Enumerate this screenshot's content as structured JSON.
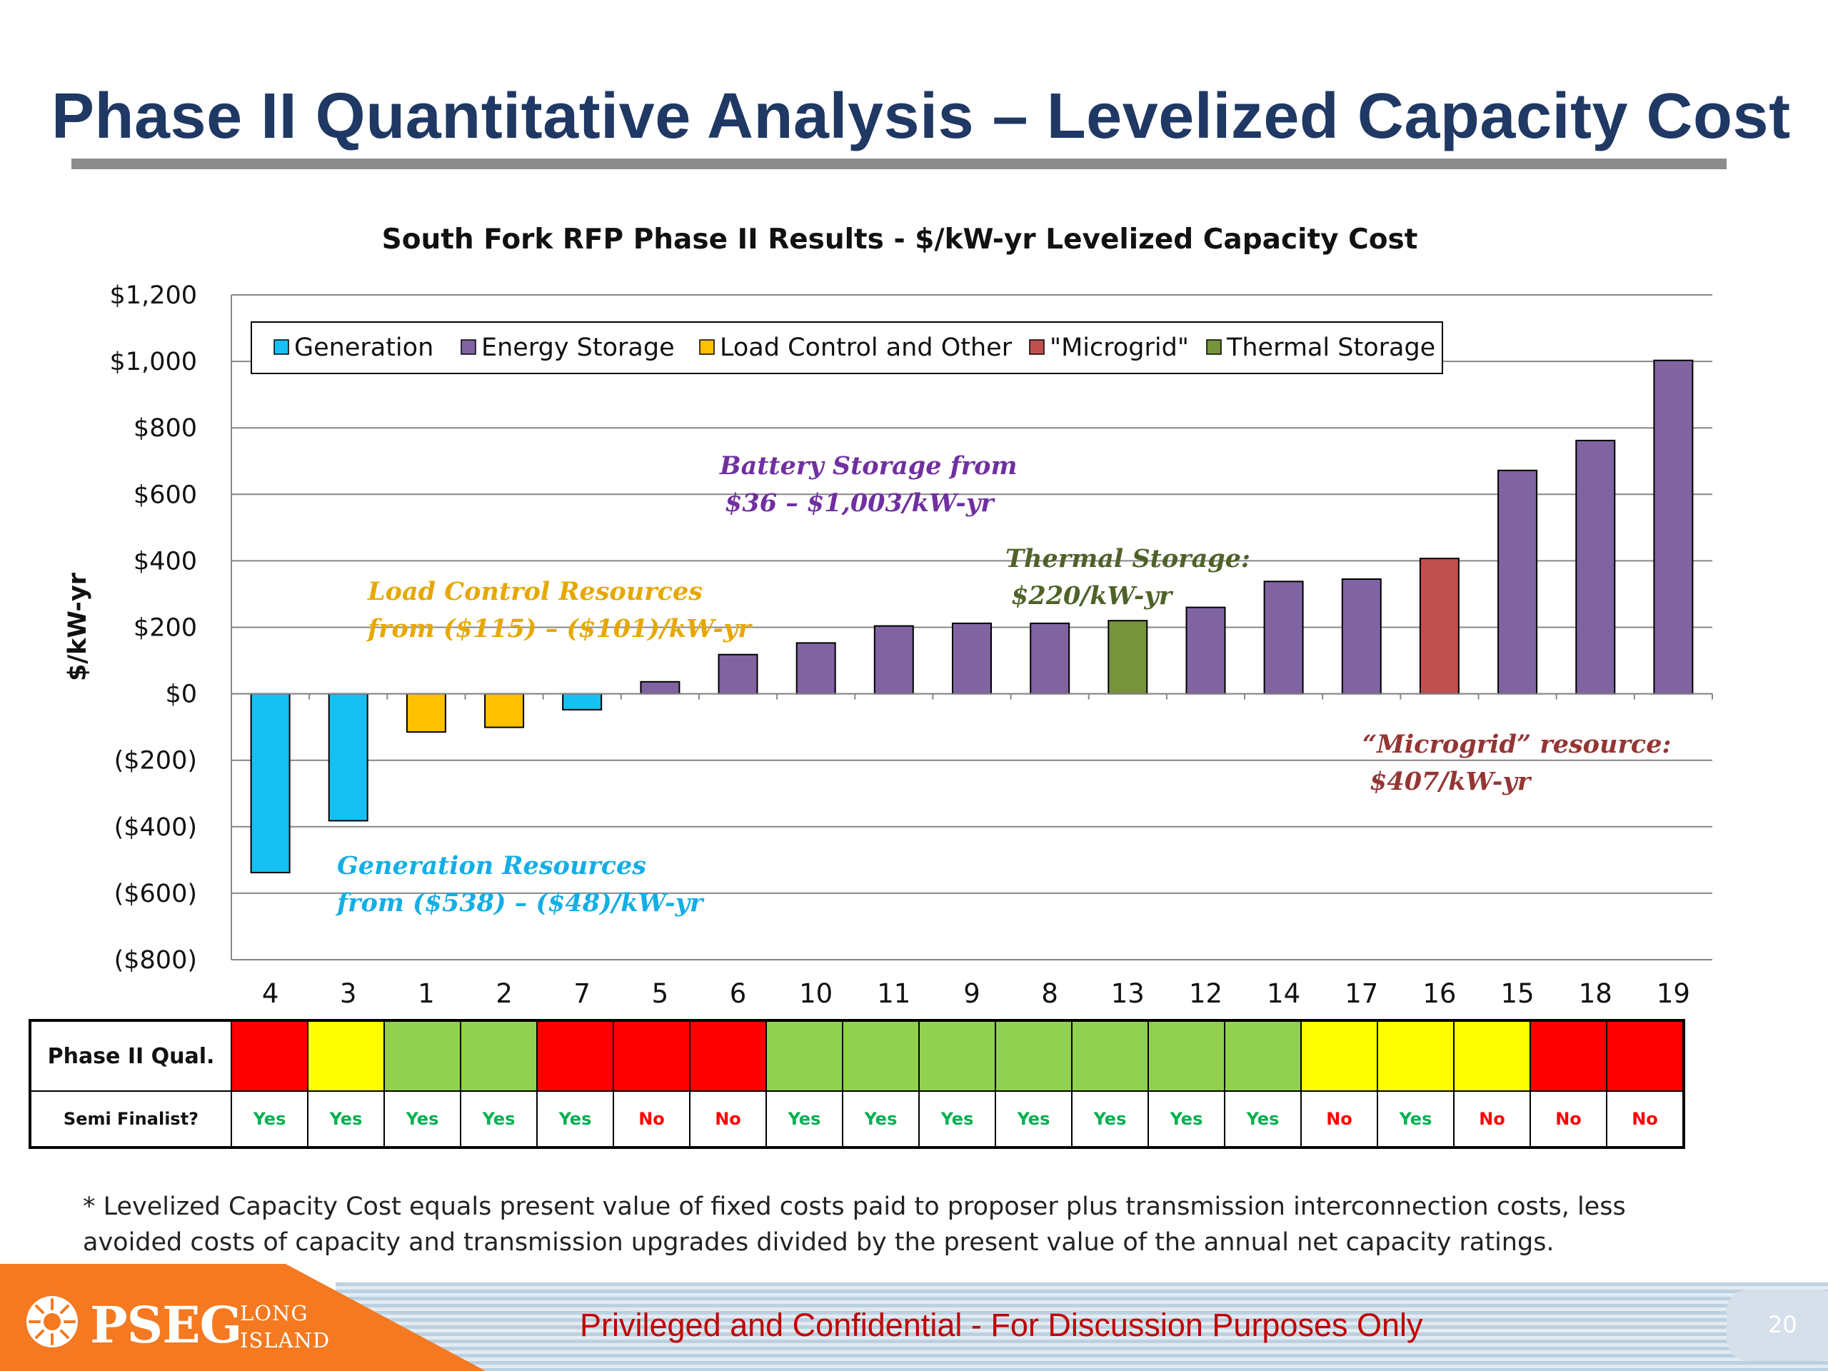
{
  "slide": {
    "title": "Phase II Quantitative Analysis – Levelized Capacity Cost",
    "footnote": "* Levelized Capacity Cost equals present value of fixed costs paid to proposer plus transmission interconnection costs, less avoided costs of capacity and transmission upgrades divided by the present value of the annual net capacity ratings.",
    "confidential": "Privileged and Confidential - For Discussion Purposes Only",
    "page_number": "20",
    "logo": {
      "brand": "PSEG",
      "line1": "LONG",
      "line2": "ISLAND"
    }
  },
  "chart_data": {
    "type": "bar",
    "title": "South Fork RFP Phase II Results - $/kW-yr Levelized Capacity Cost",
    "xlabel": "",
    "ylabel": "$/kW-yr",
    "ylim": [
      -800,
      1200
    ],
    "y_ticks": [
      {
        "value": 1200,
        "label": "$1,200"
      },
      {
        "value": 1000,
        "label": "$1,000"
      },
      {
        "value": 800,
        "label": "$800"
      },
      {
        "value": 600,
        "label": "$600"
      },
      {
        "value": 400,
        "label": "$400"
      },
      {
        "value": 200,
        "label": "$200"
      },
      {
        "value": 0,
        "label": "$0"
      },
      {
        "value": -200,
        "label": "($200)"
      },
      {
        "value": -400,
        "label": "($400)"
      },
      {
        "value": -600,
        "label": "($600)"
      },
      {
        "value": -800,
        "label": "($800)"
      }
    ],
    "grid": true,
    "legend_position": "top-left",
    "categories": [
      "4",
      "3",
      "1",
      "2",
      "7",
      "5",
      "6",
      "10",
      "11",
      "9",
      "8",
      "13",
      "12",
      "14",
      "17",
      "16",
      "15",
      "18",
      "19"
    ],
    "values": [
      -538,
      -382,
      -115,
      -101,
      -48,
      36,
      118,
      153,
      204,
      212,
      212,
      220,
      260,
      338,
      345,
      407,
      672,
      762,
      1003
    ],
    "bar_types": [
      "Generation",
      "Generation",
      "Load Control and Other",
      "Load Control and Other",
      "Generation",
      "Energy Storage",
      "Energy Storage",
      "Energy Storage",
      "Energy Storage",
      "Energy Storage",
      "Energy Storage",
      "Thermal Storage",
      "Energy Storage",
      "Energy Storage",
      "Energy Storage",
      "\"Microgrid\"",
      "Energy Storage",
      "Energy Storage",
      "Energy Storage"
    ],
    "legend": [
      {
        "name": "Generation",
        "color": "#14c1f2"
      },
      {
        "name": "Energy Storage",
        "color": "#8064a2"
      },
      {
        "name": "Load Control and Other",
        "color": "#ffc000"
      },
      {
        "name": "\"Microgrid\"",
        "color": "#c0504d"
      },
      {
        "name": "Thermal Storage",
        "color": "#77933c"
      }
    ],
    "annotations": {
      "battery": {
        "line1": "Battery Storage from",
        "line2": "$36 – $1,003/kW-yr",
        "color": "#7030a0"
      },
      "thermal": {
        "line1": "Thermal Storage:",
        "line2": "$220/kW-yr",
        "color": "#4f6228"
      },
      "load_control": {
        "line1": "Load Control Resources",
        "line2": "from ($115) – ($101)/kW-yr",
        "color": "#e6a800"
      },
      "generation": {
        "line1": "Generation Resources",
        "line2": "from ($538) – ($48)/kW-yr",
        "color": "#14aee6"
      },
      "microgrid": {
        "line1": "“Microgrid” resource:",
        "line2": "$407/kW-yr",
        "color": "#943634"
      }
    }
  },
  "table": {
    "row1_label": "Phase II Qual.",
    "row2_label": "Semi Finalist?",
    "qual_colors": [
      "#ff0000",
      "#ffff00",
      "#92d050",
      "#92d050",
      "#ff0000",
      "#ff0000",
      "#ff0000",
      "#92d050",
      "#92d050",
      "#92d050",
      "#92d050",
      "#92d050",
      "#92d050",
      "#92d050",
      "#ffff00",
      "#ffff00",
      "#ffff00",
      "#ff0000",
      "#ff0000"
    ],
    "semi_finalist": [
      "Yes",
      "Yes",
      "Yes",
      "Yes",
      "Yes",
      "No",
      "No",
      "Yes",
      "Yes",
      "Yes",
      "Yes",
      "Yes",
      "Yes",
      "Yes",
      "No",
      "Yes",
      "No",
      "No",
      "No"
    ],
    "yes_color": "#00b050",
    "no_color": "#ff0000"
  }
}
